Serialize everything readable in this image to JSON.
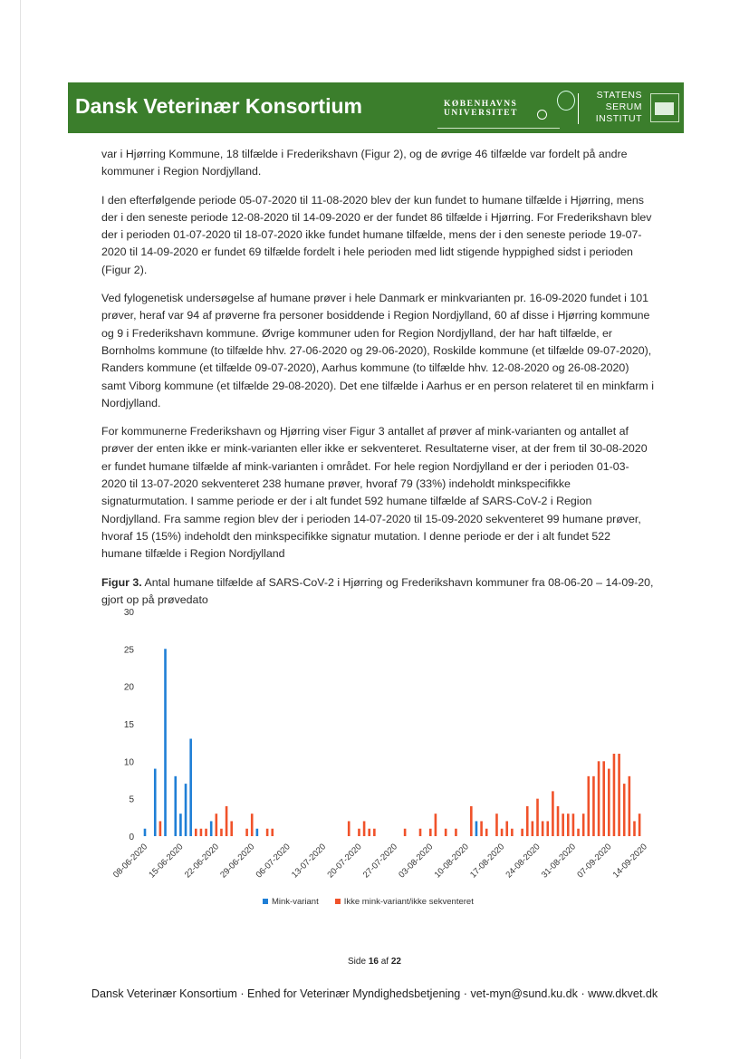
{
  "header": {
    "title": "Dansk Veterinær Konsortium",
    "ku_line1": "KØBENHAVNS",
    "ku_line2": "UNIVERSITET",
    "ssi_line1": "STATENS",
    "ssi_line2": "SERUM",
    "ssi_line3": "INSTITUT",
    "brand_color": "#3b7e2c"
  },
  "paragraphs": [
    "var i Hjørring Kommune, 18 tilfælde i Frederikshavn (Figur 2), og de øvrige 46 tilfælde var fordelt på andre kommuner i Region Nordjylland.",
    "I den efterfølgende periode 05-07-2020 til 11-08-2020 blev der kun fundet to humane tilfælde i Hjørring, mens der i den seneste periode 12-08-2020 til 14-09-2020 er der fundet 86 tilfælde i Hjørring. For Frederikshavn blev der i perioden 01-07-2020 til 18-07-2020 ikke fundet humane tilfælde, mens der i den seneste periode 19-07-2020 til 14-09-2020 er fundet 69 tilfælde fordelt i hele perioden med lidt stigende hyppighed sidst i perioden (Figur 2).",
    "Ved fylogenetisk undersøgelse af humane prøver i hele Danmark er minkvarianten pr. 16-09-2020 fundet i 101 prøver, heraf var 94 af prøverne fra personer bosiddende i Region Nordjylland, 60 af disse i Hjørring kommune og 9 i Frederikshavn kommune. Øvrige kommuner uden for Region Nordjylland, der har haft tilfælde, er Bornholms kommune (to tilfælde hhv. 27-06-2020 og 29-06-2020), Roskilde kommune (et tilfælde 09-07-2020), Randers kommune (et tilfælde 09-07-2020), Aarhus kommune (to tilfælde hhv. 12-08-2020 og 26-08-2020) samt Viborg kommune (et tilfælde 29-08-2020). Det ene tilfælde i Aarhus er en person relateret til en minkfarm i Nordjylland.",
    "For kommunerne Frederikshavn og Hjørring viser Figur 3 antallet af prøver af mink-varianten og antallet af prøver der enten ikke er mink-varianten eller ikke er sekventeret. Resultaterne viser, at der frem til 30-08-2020 er fundet humane tilfælde af mink-varianten i området. For hele region Nordjylland er der i perioden 01-03-2020 til 13-07-2020 sekventeret 238 humane prøver, hvoraf 79 (33%) indeholdt minkspecifikke signaturmutation. I samme periode er der i alt fundet 592 humane tilfælde af SARS-CoV-2 i Region Nordjylland. Fra samme region blev der i perioden 14-07-2020 til 15-09-2020 sekventeret 99 humane prøver, hvoraf 15 (15%) indeholdt den minkspecifikke signatur mutation. I denne periode er der i alt fundet 522 humane tilfælde i Region Nordjylland"
  ],
  "caption": {
    "label": "Figur 3.",
    "text": " Antal humane tilfælde af SARS-CoV-2 i Hjørring og Frederikshavn kommuner fra 08-06-20 – 14-09-20, gjort op på prøvedato"
  },
  "chart_data": {
    "type": "bar",
    "title": "",
    "xlabel": "",
    "ylabel": "",
    "ylim": [
      0,
      30
    ],
    "yticks": [
      "0",
      "5",
      "10",
      "15",
      "20",
      "25",
      "30"
    ],
    "xrange": [
      "08-06-2020",
      "14-09-2020"
    ],
    "xticks": [
      "08-06-2020",
      "15-06-2020",
      "22-06-2020",
      "29-06-2020",
      "06-07-2020",
      "13-07-2020",
      "20-07-2020",
      "27-07-2020",
      "03-08-2020",
      "10-08-2020",
      "17-08-2020",
      "24-08-2020",
      "31-08-2020",
      "07-09-2020",
      "14-09-2020"
    ],
    "grid": false,
    "legend_position": "bottom",
    "series": [
      {
        "name": "Mink-variant",
        "color": "#1f7fd6",
        "points": [
          [
            "08-06-2020",
            1
          ],
          [
            "10-06-2020",
            9
          ],
          [
            "12-06-2020",
            25
          ],
          [
            "14-06-2020",
            8
          ],
          [
            "15-06-2020",
            3
          ],
          [
            "16-06-2020",
            7
          ],
          [
            "17-06-2020",
            13
          ],
          [
            "21-06-2020",
            2
          ],
          [
            "30-06-2020",
            1
          ],
          [
            "12-08-2020",
            2
          ]
        ]
      },
      {
        "name": "Ikke mink-variant/ikke sekventeret",
        "color": "#f0522a",
        "points": [
          [
            "11-06-2020",
            2
          ],
          [
            "18-06-2020",
            1
          ],
          [
            "19-06-2020",
            1
          ],
          [
            "20-06-2020",
            1
          ],
          [
            "22-06-2020",
            3
          ],
          [
            "23-06-2020",
            1
          ],
          [
            "24-06-2020",
            4
          ],
          [
            "25-06-2020",
            2
          ],
          [
            "28-06-2020",
            1
          ],
          [
            "29-06-2020",
            3
          ],
          [
            "02-07-2020",
            1
          ],
          [
            "03-07-2020",
            1
          ],
          [
            "18-07-2020",
            2
          ],
          [
            "20-07-2020",
            1
          ],
          [
            "21-07-2020",
            2
          ],
          [
            "22-07-2020",
            1
          ],
          [
            "23-07-2020",
            1
          ],
          [
            "29-07-2020",
            1
          ],
          [
            "01-08-2020",
            1
          ],
          [
            "03-08-2020",
            1
          ],
          [
            "04-08-2020",
            3
          ],
          [
            "06-08-2020",
            1
          ],
          [
            "08-08-2020",
            1
          ],
          [
            "11-08-2020",
            4
          ],
          [
            "13-08-2020",
            2
          ],
          [
            "14-08-2020",
            1
          ],
          [
            "16-08-2020",
            3
          ],
          [
            "17-08-2020",
            1
          ],
          [
            "18-08-2020",
            2
          ],
          [
            "19-08-2020",
            1
          ],
          [
            "21-08-2020",
            1
          ],
          [
            "22-08-2020",
            4
          ],
          [
            "23-08-2020",
            2
          ],
          [
            "24-08-2020",
            5
          ],
          [
            "25-08-2020",
            2
          ],
          [
            "26-08-2020",
            2
          ],
          [
            "27-08-2020",
            6
          ],
          [
            "28-08-2020",
            4
          ],
          [
            "29-08-2020",
            3
          ],
          [
            "30-08-2020",
            3
          ],
          [
            "31-08-2020",
            3
          ],
          [
            "01-09-2020",
            1
          ],
          [
            "02-09-2020",
            3
          ],
          [
            "03-09-2020",
            8
          ],
          [
            "04-09-2020",
            8
          ],
          [
            "05-09-2020",
            10
          ],
          [
            "06-09-2020",
            10
          ],
          [
            "07-09-2020",
            9
          ],
          [
            "08-09-2020",
            11
          ],
          [
            "09-09-2020",
            11
          ],
          [
            "10-09-2020",
            7
          ],
          [
            "11-09-2020",
            8
          ],
          [
            "12-09-2020",
            2
          ],
          [
            "13-09-2020",
            3
          ]
        ]
      }
    ]
  },
  "page_number": {
    "prefix": "Side ",
    "current": "16",
    "mid": " af ",
    "total": "22"
  },
  "footer": "Dansk Veterinær Konsortium · Enhed for Veterinær Myndighedsbetjening · vet-myn@sund.ku.dk · www.dkvet.dk"
}
